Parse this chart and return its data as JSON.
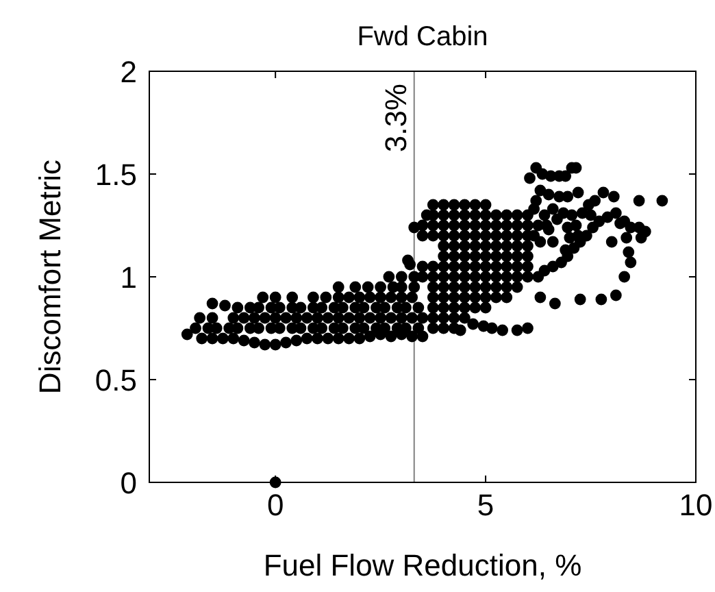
{
  "chart_data": {
    "type": "scatter",
    "title": "Fwd Cabin",
    "xlabel": "Fuel Flow Reduction, %",
    "ylabel": "Discomfort Metric",
    "xlim": [
      -3,
      10
    ],
    "ylim": [
      0,
      2
    ],
    "xticks": [
      0,
      5,
      10
    ],
    "yticks": [
      0,
      0.5,
      1,
      1.5,
      2
    ],
    "marker": "circle",
    "ref_lines": [
      {
        "axis": "x",
        "value": 3.3,
        "label": "3.3%",
        "color": "#808080"
      }
    ],
    "series": [
      {
        "color": "#000000",
        "x": [
          -2.1,
          -1.75,
          -1.5,
          -1.25,
          -1,
          -0.75,
          -0.5,
          -0.25,
          0,
          0.25,
          0.5,
          0.75,
          1,
          1.25,
          1.5,
          1.75,
          2,
          2.25,
          2.5,
          2.75,
          3,
          3.25,
          3.5,
          -1.9,
          -1.6,
          -1.4,
          -1.1,
          -0.9,
          -0.6,
          -0.4,
          -0.1,
          0.1,
          0.4,
          0.6,
          0.9,
          1.1,
          1.4,
          1.6,
          1.9,
          2.1,
          2.4,
          2.6,
          2.9,
          3.1,
          3.4,
          -1.8,
          -1.5,
          -1,
          -0.75,
          -0.5,
          -0.25,
          0,
          0.25,
          0.5,
          0.75,
          1,
          1.25,
          1.5,
          1.75,
          2,
          2.25,
          2.5,
          2.75,
          3,
          3.25,
          3.5,
          -1.5,
          -1.2,
          -0.9,
          -0.6,
          -0.4,
          -0.1,
          0.1,
          0.4,
          0.6,
          0.9,
          1.1,
          1.4,
          1.6,
          1.9,
          2.1,
          2.4,
          2.6,
          2.9,
          3.1,
          3.4,
          -0.3,
          0,
          0.4,
          0.9,
          1.2,
          1.5,
          1.75,
          2,
          2.25,
          2.5,
          2.75,
          3,
          3.25,
          1.5,
          1.9,
          2.2,
          2.5,
          2.8,
          3,
          3.3,
          2.7,
          3,
          3.3,
          3.2,
          3.5,
          3.5,
          3.5,
          3.5,
          3.6,
          3.75,
          3.75,
          3.75,
          3.75,
          3.75,
          3.75,
          3.75,
          3.75,
          3.75,
          3.75,
          3.75,
          4,
          4,
          4,
          4,
          4,
          4,
          4,
          4,
          4,
          4,
          4,
          4,
          4,
          4.25,
          4.25,
          4.25,
          4.25,
          4.25,
          4.25,
          4.25,
          4.25,
          4.25,
          4.25,
          4.25,
          4.25,
          4.25,
          4.5,
          4.5,
          4.5,
          4.5,
          4.5,
          4.5,
          4.5,
          4.5,
          4.5,
          4.5,
          4.5,
          4.5,
          4.75,
          4.75,
          4.75,
          4.75,
          4.75,
          4.75,
          4.75,
          4.75,
          4.75,
          4.75,
          4.75,
          5,
          5,
          5,
          5,
          5,
          5,
          5,
          5,
          5,
          5,
          5,
          5.25,
          5.25,
          5.25,
          5.25,
          5.25,
          5.25,
          5.25,
          5.25,
          5.25,
          5.5,
          5.5,
          5.5,
          5.5,
          5.5,
          5.5,
          5.5,
          5.5,
          5.5,
          5.75,
          5.75,
          5.75,
          5.75,
          5.75,
          5.75,
          5.75,
          5.75,
          6,
          6,
          6,
          6,
          6,
          6,
          6,
          6.15,
          4.4,
          4.7,
          4.95,
          5.15,
          5.4,
          5.75,
          6,
          6.3,
          6.65,
          7.25,
          7.75,
          8.1,
          6.25,
          6.4,
          6.6,
          6.8,
          6.95,
          7.1,
          7.25,
          7.4,
          7.55,
          7.7,
          7.9,
          8.1,
          6.6,
          6.9,
          6.3,
          6.45,
          6.7,
          6.95,
          7.15,
          6.05,
          6.2,
          6.35,
          6.55,
          6.75,
          6.9,
          7.05,
          7.15,
          6.3,
          6.5,
          6.75,
          6.95,
          7.2,
          6.2,
          7.45,
          7.6,
          7.8,
          8.05,
          8.65,
          9.2,
          8.2,
          8.45,
          8.65,
          8.8,
          8.7,
          8.35,
          8.4,
          8.45,
          8.3,
          8.3,
          3.3,
          3.15,
          6.4,
          6.6,
          6.85,
          7.05,
          7.3,
          6.5,
          7.2,
          7,
          8,
          7.5,
          6.25,
          6.15,
          0
        ],
        "values": [
          0.72,
          0.7,
          0.7,
          0.7,
          0.7,
          0.69,
          0.68,
          0.67,
          0.67,
          0.68,
          0.69,
          0.7,
          0.7,
          0.7,
          0.7,
          0.7,
          0.7,
          0.71,
          0.72,
          0.71,
          0.72,
          0.71,
          0.71,
          0.75,
          0.75,
          0.75,
          0.75,
          0.75,
          0.75,
          0.75,
          0.75,
          0.75,
          0.75,
          0.75,
          0.75,
          0.75,
          0.75,
          0.75,
          0.75,
          0.75,
          0.75,
          0.75,
          0.75,
          0.75,
          0.75,
          0.8,
          0.8,
          0.8,
          0.8,
          0.8,
          0.8,
          0.8,
          0.8,
          0.8,
          0.8,
          0.8,
          0.8,
          0.8,
          0.8,
          0.8,
          0.8,
          0.8,
          0.8,
          0.8,
          0.8,
          0.8,
          0.87,
          0.86,
          0.85,
          0.85,
          0.85,
          0.85,
          0.85,
          0.85,
          0.85,
          0.85,
          0.85,
          0.85,
          0.85,
          0.85,
          0.85,
          0.85,
          0.85,
          0.85,
          0.85,
          0.85,
          0.9,
          0.9,
          0.9,
          0.9,
          0.9,
          0.9,
          0.9,
          0.9,
          0.9,
          0.9,
          0.9,
          0.9,
          0.9,
          0.95,
          0.95,
          0.95,
          0.95,
          0.95,
          0.95,
          0.95,
          1,
          1,
          1,
          1.06,
          1,
          1.05,
          1.2,
          1.25,
          1.3,
          0.75,
          0.8,
          0.85,
          0.9,
          0.95,
          1,
          1.05,
          1.2,
          1.25,
          1.3,
          1.35,
          0.75,
          0.8,
          0.85,
          0.9,
          0.95,
          1,
          1.05,
          1.1,
          1.15,
          1.2,
          1.25,
          1.3,
          1.35,
          0.75,
          0.8,
          0.85,
          0.9,
          0.95,
          1,
          1.05,
          1.1,
          1.15,
          1.2,
          1.25,
          1.3,
          1.35,
          0.8,
          0.85,
          0.9,
          0.95,
          1,
          1.05,
          1.1,
          1.15,
          1.2,
          1.25,
          1.3,
          1.35,
          0.85,
          0.9,
          0.95,
          1,
          1.05,
          1.1,
          1.15,
          1.2,
          1.25,
          1.3,
          1.35,
          0.85,
          0.9,
          0.95,
          1,
          1.05,
          1.1,
          1.15,
          1.2,
          1.25,
          1.3,
          1.35,
          0.9,
          0.95,
          1,
          1.05,
          1.1,
          1.15,
          1.2,
          1.25,
          1.3,
          0.9,
          0.95,
          1,
          1.05,
          1.1,
          1.15,
          1.2,
          1.25,
          1.3,
          0.95,
          1,
          1.05,
          1.1,
          1.15,
          1.2,
          1.25,
          1.3,
          1,
          1.05,
          1.1,
          1.15,
          1.2,
          1.25,
          1.3,
          1.33,
          0.74,
          0.77,
          0.76,
          0.75,
          0.74,
          0.74,
          0.75,
          0.9,
          0.87,
          0.89,
          0.89,
          0.91,
          1,
          1.03,
          1.05,
          1.07,
          1.1,
          1.14,
          1.17,
          1.2,
          1.24,
          1.27,
          1.29,
          1.31,
          1.17,
          1.13,
          1.17,
          1.25,
          1.28,
          1.24,
          1.25,
          1.48,
          1.53,
          1.5,
          1.49,
          1.49,
          1.49,
          1.53,
          1.53,
          1.42,
          1.4,
          1.39,
          1.39,
          1.41,
          1.37,
          1.35,
          1.37,
          1.41,
          1.39,
          1.37,
          1.37,
          1.26,
          1.24,
          1.24,
          1.22,
          1.19,
          1.19,
          1.12,
          1.07,
          1,
          1.27,
          1.24,
          1.08,
          1.3,
          1.33,
          1.31,
          1.3,
          1.31,
          1.23,
          1.2,
          1.19,
          1.17,
          1.3,
          1.25,
          1.2,
          0
        ]
      }
    ]
  }
}
